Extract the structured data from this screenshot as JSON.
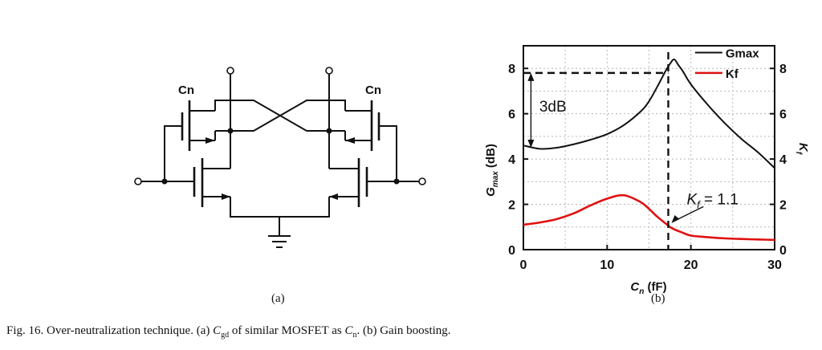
{
  "circuit": {
    "left_cap_label": "Cn",
    "right_cap_label": "Cn",
    "sublabel": "(a)"
  },
  "chart_data": {
    "type": "line",
    "x": [
      0,
      2,
      4,
      6,
      8,
      10,
      12,
      14,
      15,
      16,
      17,
      17.5,
      18,
      18.5,
      19,
      20,
      22,
      24,
      26,
      28,
      30
    ],
    "series": [
      {
        "name": "Gmax",
        "axis": "left",
        "color": "#111111",
        "values": [
          4.6,
          4.45,
          4.5,
          4.65,
          4.85,
          5.1,
          5.5,
          6.1,
          6.55,
          7.2,
          7.9,
          8.2,
          8.4,
          8.15,
          7.9,
          7.3,
          6.4,
          5.6,
          4.9,
          4.3,
          3.6
        ]
      },
      {
        "name": "Kf",
        "axis": "right",
        "color": "#e01010",
        "values": [
          1.1,
          1.2,
          1.35,
          1.6,
          1.95,
          2.25,
          2.4,
          2.1,
          1.8,
          1.45,
          1.15,
          1.0,
          0.9,
          0.82,
          0.75,
          0.62,
          0.55,
          0.5,
          0.47,
          0.45,
          0.43
        ]
      }
    ],
    "xlabel": "C_n (fF)",
    "ylabel_left": "G_max (dB)",
    "ylabel_right": "K_f",
    "xlim": [
      0,
      30
    ],
    "ylim_left": [
      0,
      9
    ],
    "ylim_right": [
      0,
      9
    ],
    "x_ticks": [
      "0",
      "10",
      "20",
      "30"
    ],
    "y_ticks_left": [
      "0",
      "2",
      "4",
      "6",
      "8"
    ],
    "y_ticks_right": [
      "0",
      "2",
      "4",
      "6",
      "8"
    ],
    "legend": [
      "Gmax",
      "Kf"
    ],
    "legend_position": "top-right",
    "annotations": {
      "three_db": "3dB",
      "kf_value": "K",
      "kf_sub": "f",
      "kf_eq": " = 1.1"
    },
    "marker_x": 17.3,
    "marker_y_left": 7.8,
    "kf_point": 1.1,
    "sublabel": "(b)"
  },
  "caption": {
    "prefix": "Fig. 16.   Over-neutralization technique. (a) ",
    "cgd_main": "C",
    "cgd_sub": "gd",
    "middle": "  of similar MOSFET as ",
    "cn_main": "C",
    "cn_sub": "n",
    "suffix": ". (b) Gain boosting."
  }
}
